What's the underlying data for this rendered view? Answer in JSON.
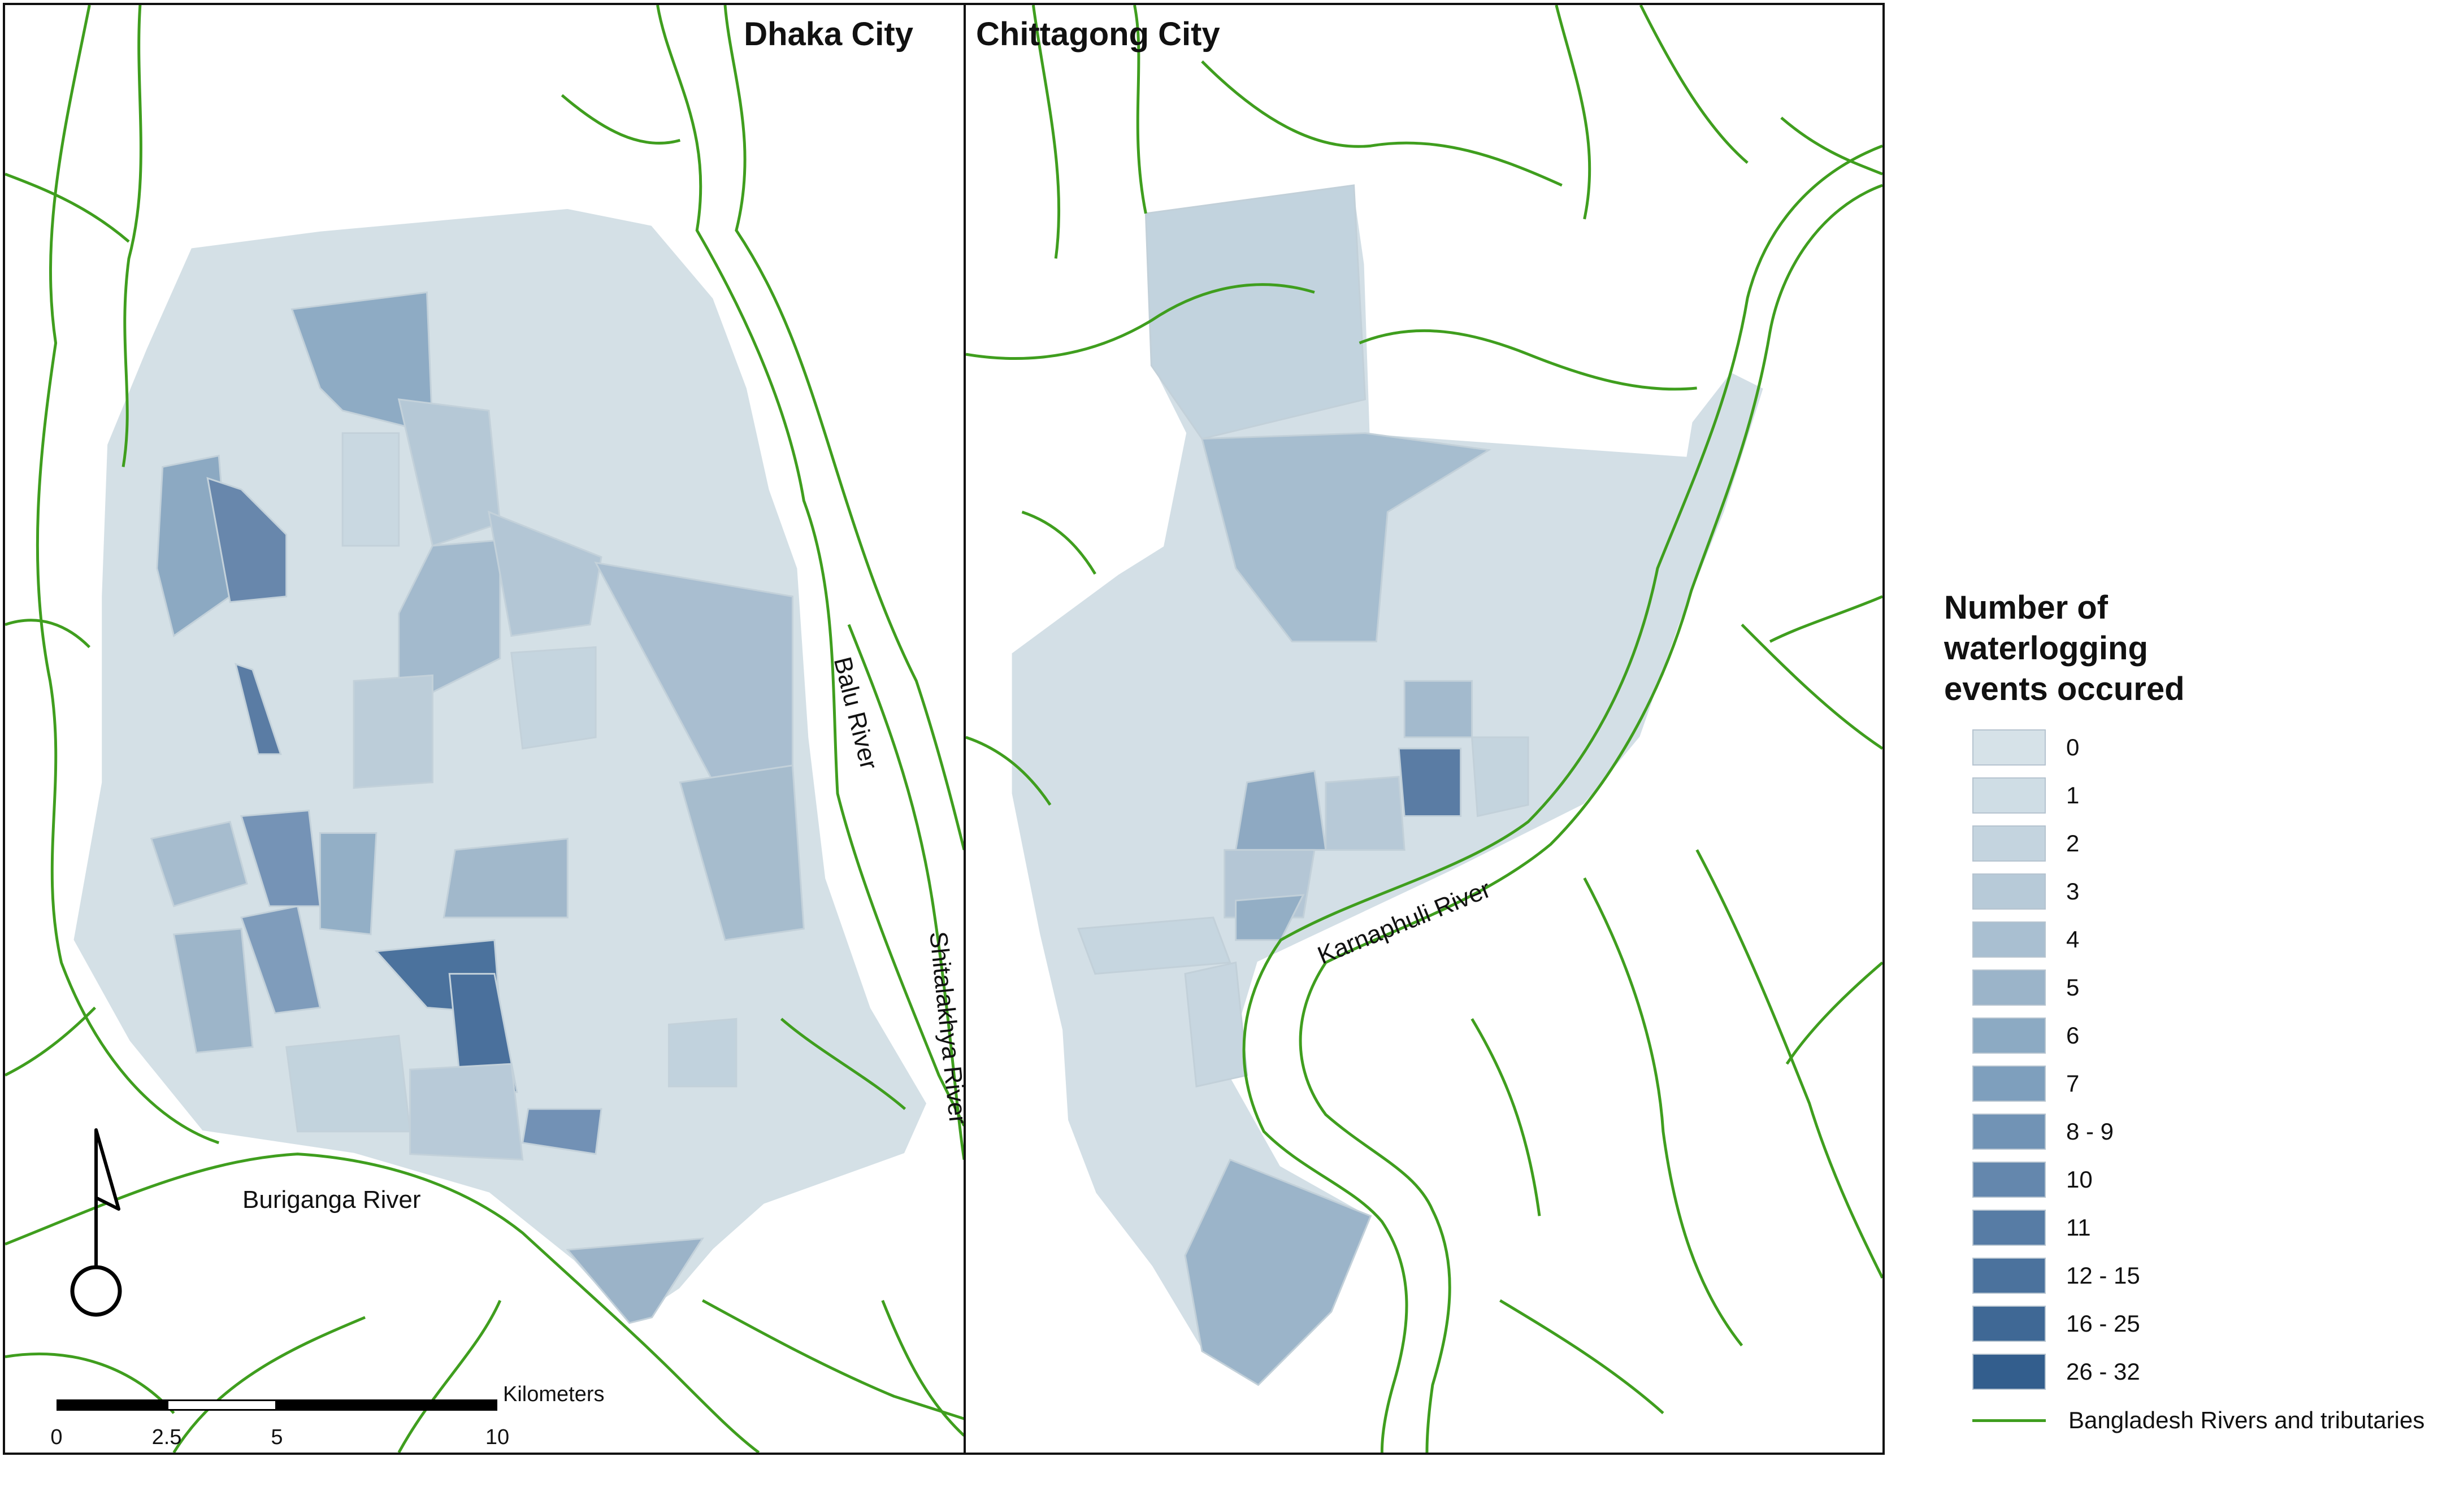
{
  "maps": {
    "dhaka_title": "Dhaka City",
    "chittagong_title": "Chittagong City"
  },
  "rivers": {
    "balu": "Balu River",
    "shitalakhya": "Shitalakhya River",
    "buriganga": "Buriganga River",
    "karnaphuli": "Karnaphuli River"
  },
  "legend": {
    "title_lines": [
      "Number of",
      "waterlogging",
      "events occured"
    ],
    "classes": [
      {
        "label": "0",
        "color": "#d6e2e8"
      },
      {
        "label": "1",
        "color": "#cfdde5"
      },
      {
        "label": "2",
        "color": "#c4d4df"
      },
      {
        "label": "3",
        "color": "#b7cad8"
      },
      {
        "label": "4",
        "color": "#a9bfd1"
      },
      {
        "label": "5",
        "color": "#9bb4c9"
      },
      {
        "label": "6",
        "color": "#8caac3"
      },
      {
        "label": "7",
        "color": "#7e9fbd"
      },
      {
        "label": "8 - 9",
        "color": "#7193b5"
      },
      {
        "label": "10",
        "color": "#6487ad"
      },
      {
        "label": "11",
        "color": "#577ca5"
      },
      {
        "label": "12 - 15",
        "color": "#4b729d"
      },
      {
        "label": "16 - 25",
        "color": "#3f6895"
      },
      {
        "label": "26 - 32",
        "color": "#335e8d"
      }
    ],
    "river_key": {
      "label": "Bangladesh Rivers and tributaries",
      "color": "#3f9e1e"
    }
  },
  "scale_bar": {
    "unit": "Kilometers",
    "ticks": [
      "0",
      "2.5",
      "5",
      "10"
    ]
  },
  "north_arrow": {
    "icon": "north-arrow-icon"
  }
}
